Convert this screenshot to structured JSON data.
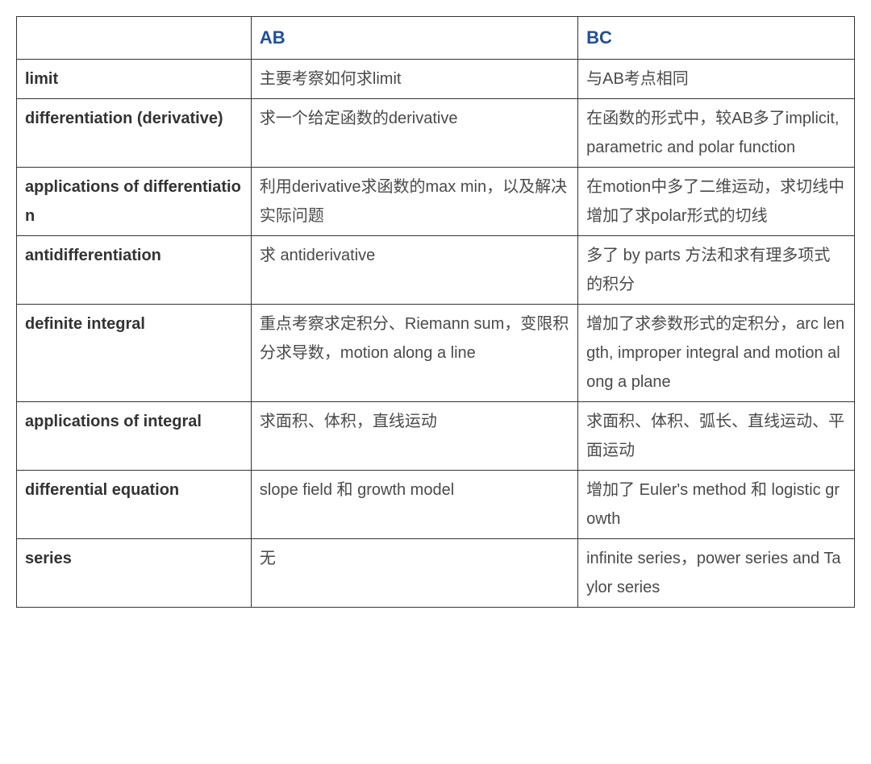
{
  "table": {
    "headers": {
      "topic": "",
      "ab": "AB",
      "bc": "BC"
    },
    "rows": [
      {
        "topic": "limit",
        "ab": "主要考察如何求limit",
        "bc": "与AB考点相同"
      },
      {
        "topic": "differentiation (derivative)",
        "ab": "求一个给定函数的derivative",
        "bc": "在函数的形式中，较AB多了implicit, parametric and polar  function"
      },
      {
        "topic": "applications of differentiation",
        "ab": "利用derivative求函数的max min，以及解决实际问题",
        "bc": "在motion中多了二维运动，求切线中增加了求polar形式的切线"
      },
      {
        "topic": "antidifferentiation",
        "ab": "求 antiderivative",
        "bc": "多了 by parts 方法和求有理多项式的积分"
      },
      {
        "topic": "definite integral",
        "ab": "重点考察求定积分、Riemann sum，变限积分求导数，motion along a line",
        "bc": "增加了求参数形式的定积分，arc length, improper  integral and motion along a plane"
      },
      {
        "topic": "applications of integral",
        "ab": "求面积、体积，直线运动",
        "bc": "求面积、体积、弧长、直线运动、平面运动"
      },
      {
        "topic": "differential equation",
        "ab": "slope field 和  growth model",
        "bc": "增加了 Euler's method 和  logistic growth"
      },
      {
        "topic": "series",
        "ab": "无",
        "bc": "infinite series，power series and Taylor series"
      }
    ],
    "colors": {
      "header_text": "#1e4f9e",
      "border": "#333333",
      "topic_text": "#333333",
      "content_text": "#4a4a4a",
      "background": "#ffffff"
    },
    "typography": {
      "header_fontsize": 22,
      "header_fontweight": "bold",
      "topic_fontweight": "bold",
      "cell_fontsize": 20,
      "line_height": 1.8
    },
    "layout": {
      "col_widths": [
        "28%",
        "39%",
        "33%"
      ]
    }
  }
}
